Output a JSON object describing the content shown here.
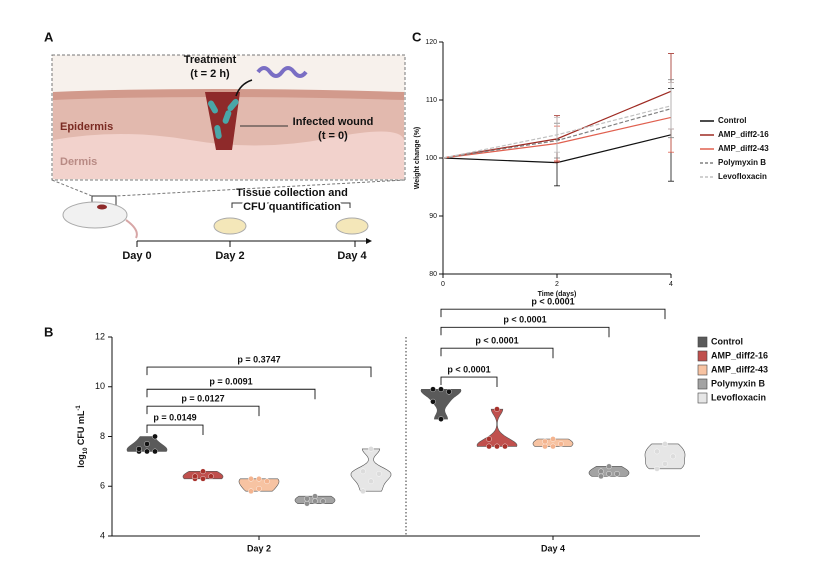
{
  "panel_a": {
    "letter": "A",
    "treatment": "Treatment",
    "treatment_time": "(t = 2 h)",
    "epidermis": "Epidermis",
    "dermis": "Dermis",
    "wound": "Infected wound",
    "wound_time": "(t = 0)",
    "collection_1": "Tissue collection and",
    "collection_2": "CFU quantification",
    "days": [
      "Day 0",
      "Day 2",
      "Day 4"
    ]
  },
  "chart_data": [
    {
      "type": "line",
      "letter": "C",
      "xlabel": "Time (days)",
      "ylabel": "Weight change (%)",
      "x": [
        0,
        2,
        4
      ],
      "xlim": [
        0,
        4
      ],
      "xticks": [
        0,
        2,
        4
      ],
      "ylim": [
        80,
        120
      ],
      "yticks": [
        80,
        90,
        100,
        110,
        120
      ],
      "series": [
        {
          "name": "Control",
          "color": "#111111",
          "dashed": false,
          "values": [
            100,
            99.2,
            104
          ],
          "errors": [
            0,
            4,
            8
          ]
        },
        {
          "name": "AMP_diff2-16",
          "color": "#9e2a22",
          "dashed": false,
          "values": [
            100,
            103.3,
            111.5
          ],
          "errors": [
            0,
            4,
            6.5
          ]
        },
        {
          "name": "AMP_diff2-43",
          "color": "#e0604f",
          "dashed": false,
          "values": [
            100,
            102.5,
            107
          ],
          "errors": [
            0,
            3,
            6
          ]
        },
        {
          "name": "Polymyxin B",
          "color": "#808080",
          "dashed": true,
          "values": [
            100,
            103,
            108.5
          ],
          "errors": [
            0,
            3,
            5
          ]
        },
        {
          "name": "Levofloxacin",
          "color": "#c0c0c0",
          "dashed": true,
          "values": [
            100,
            104,
            109
          ],
          "errors": [
            0,
            3,
            4
          ]
        }
      ]
    },
    {
      "type": "violin",
      "letter": "B",
      "ylabel_parts": [
        "log",
        "10",
        " CFU mL",
        "-1"
      ],
      "categories": [
        "Day 2",
        "Day 4"
      ],
      "ylim": [
        4,
        12
      ],
      "yticks": [
        4,
        6,
        8,
        10,
        12
      ],
      "series": [
        {
          "name": "Control",
          "color": "#5a5a5a",
          "points": [
            [
              7.4,
              7.4,
              7.4,
              7.5,
              7.7,
              8.0
            ],
            [
              9.9,
              9.9,
              9.8,
              9.4,
              8.7
            ]
          ]
        },
        {
          "name": "AMP_diff2-16",
          "color": "#c0504d",
          "points": [
            [
              6.3,
              6.3,
              6.4,
              6.4,
              6.6
            ],
            [
              7.6,
              7.6,
              7.6,
              7.9,
              9.1
            ]
          ]
        },
        {
          "name": "AMP_diff2-43",
          "color": "#f7c3a2",
          "points": [
            [
              5.8,
              5.9,
              6.2,
              6.3,
              6.3
            ],
            [
              7.6,
              7.6,
              7.7,
              7.8,
              7.9
            ]
          ]
        },
        {
          "name": "Polymyxin B",
          "color": "#a3a3a3",
          "points": [
            [
              5.3,
              5.4,
              5.4,
              5.5,
              5.6
            ],
            [
              6.4,
              6.5,
              6.5,
              6.6,
              6.8
            ]
          ]
        },
        {
          "name": "Levofloxacin",
          "color": "#e6e6e6",
          "points": [
            [
              5.8,
              6.2,
              6.5,
              6.6,
              7.5
            ],
            [
              6.7,
              6.9,
              7.2,
              7.4,
              7.7
            ]
          ]
        }
      ],
      "annotations": [
        {
          "text": "p = 0.0149",
          "group": 0,
          "to": 1,
          "y": 8.46
        },
        {
          "text": "p = 0.0127",
          "group": 0,
          "to": 2,
          "y": 9.22
        },
        {
          "text": "p = 0.0091",
          "group": 0,
          "to": 3,
          "y": 9.9
        },
        {
          "text": "p = 0.3747",
          "group": 0,
          "to": 4,
          "y": 10.79
        },
        {
          "text": "p < 0.0001",
          "group": 1,
          "to": 1,
          "y": 10.39
        },
        {
          "text": "p < 0.0001",
          "group": 1,
          "to": 2,
          "y": 11.55
        },
        {
          "text": "p < 0.0001",
          "group": 1,
          "to": 3,
          "y": 12.39
        },
        {
          "text": "p < 0.0001",
          "group": 1,
          "to": 4,
          "y": 13.12
        }
      ]
    }
  ]
}
